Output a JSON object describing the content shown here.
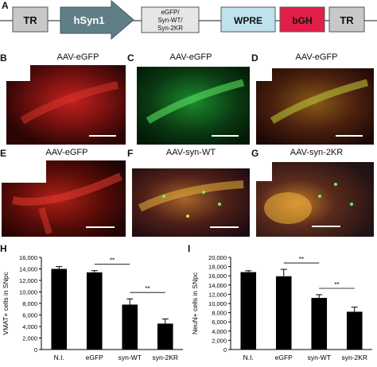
{
  "panel_letters": {
    "a": "A",
    "b": "B",
    "c": "C",
    "d": "D",
    "e": "E",
    "f": "F",
    "g": "G",
    "h": "H",
    "i": "I"
  },
  "construct": {
    "tr_left": "TR",
    "promoter": "hSyn1",
    "insert_line1": "eGFP/",
    "insert_line2": "Syn-WT/",
    "insert_line3": "Syn-2KR",
    "wpre": "WPRE",
    "bgh": "bGH",
    "tr_right": "TR",
    "colors": {
      "tr": "#c8c8c8",
      "promoter": "#5f7f86",
      "insert": "#e6e6e6",
      "wpre": "#bfe3ee",
      "bgh": "#e0204a"
    }
  },
  "micro_panels": {
    "b": {
      "title": "AAV-eGFP",
      "stain": "red"
    },
    "c": {
      "title": "AAV-eGFP",
      "stain": "green"
    },
    "d": {
      "title": "AAV-eGFP",
      "stain": "merge"
    },
    "e": {
      "title": "AAV-eGFP",
      "stain": "red"
    },
    "f": {
      "title": "AAV-syn-WT",
      "stain": "merge"
    },
    "g": {
      "title": "AAV-syn-2KR",
      "stain": "merge"
    }
  },
  "chart_data": [
    {
      "type": "bar",
      "ylabel": "VMAT+ cells in SNpc",
      "categories": [
        "N.I.",
        "eGFP",
        "syn-WT",
        "syn-2KR"
      ],
      "values": [
        14000,
        13400,
        7800,
        4500
      ],
      "errors": [
        400,
        300,
        1000,
        800
      ],
      "yticks": [
        "0",
        "2,000",
        "4,000",
        "6,000",
        "8,000",
        "10,000",
        "12,000",
        "14,000",
        "16,000"
      ],
      "ylim": [
        0,
        16000
      ],
      "bar_color": "#000000",
      "significance": [
        {
          "between": [
            "eGFP",
            "syn-WT"
          ],
          "label": "**"
        },
        {
          "between": [
            "syn-WT",
            "syn-2KR"
          ],
          "label": "**"
        }
      ]
    },
    {
      "type": "bar",
      "ylabel": "NeuN+ cells in SNpc",
      "categories": [
        "N.I.",
        "eGFP",
        "syn-WT",
        "syn-2KR"
      ],
      "values": [
        16800,
        15900,
        11200,
        8200
      ],
      "errors": [
        300,
        1500,
        700,
        1000
      ],
      "yticks": [
        "0",
        "2,000",
        "4,000",
        "6,000",
        "8,000",
        "10,000",
        "12,000",
        "14,000",
        "16,000",
        "18,000",
        "20,000"
      ],
      "ylim": [
        0,
        20000
      ],
      "bar_color": "#000000",
      "significance": [
        {
          "between": [
            "eGFP",
            "syn-WT"
          ],
          "label": "**"
        },
        {
          "between": [
            "syn-WT",
            "syn-2KR"
          ],
          "label": "**"
        }
      ]
    }
  ]
}
